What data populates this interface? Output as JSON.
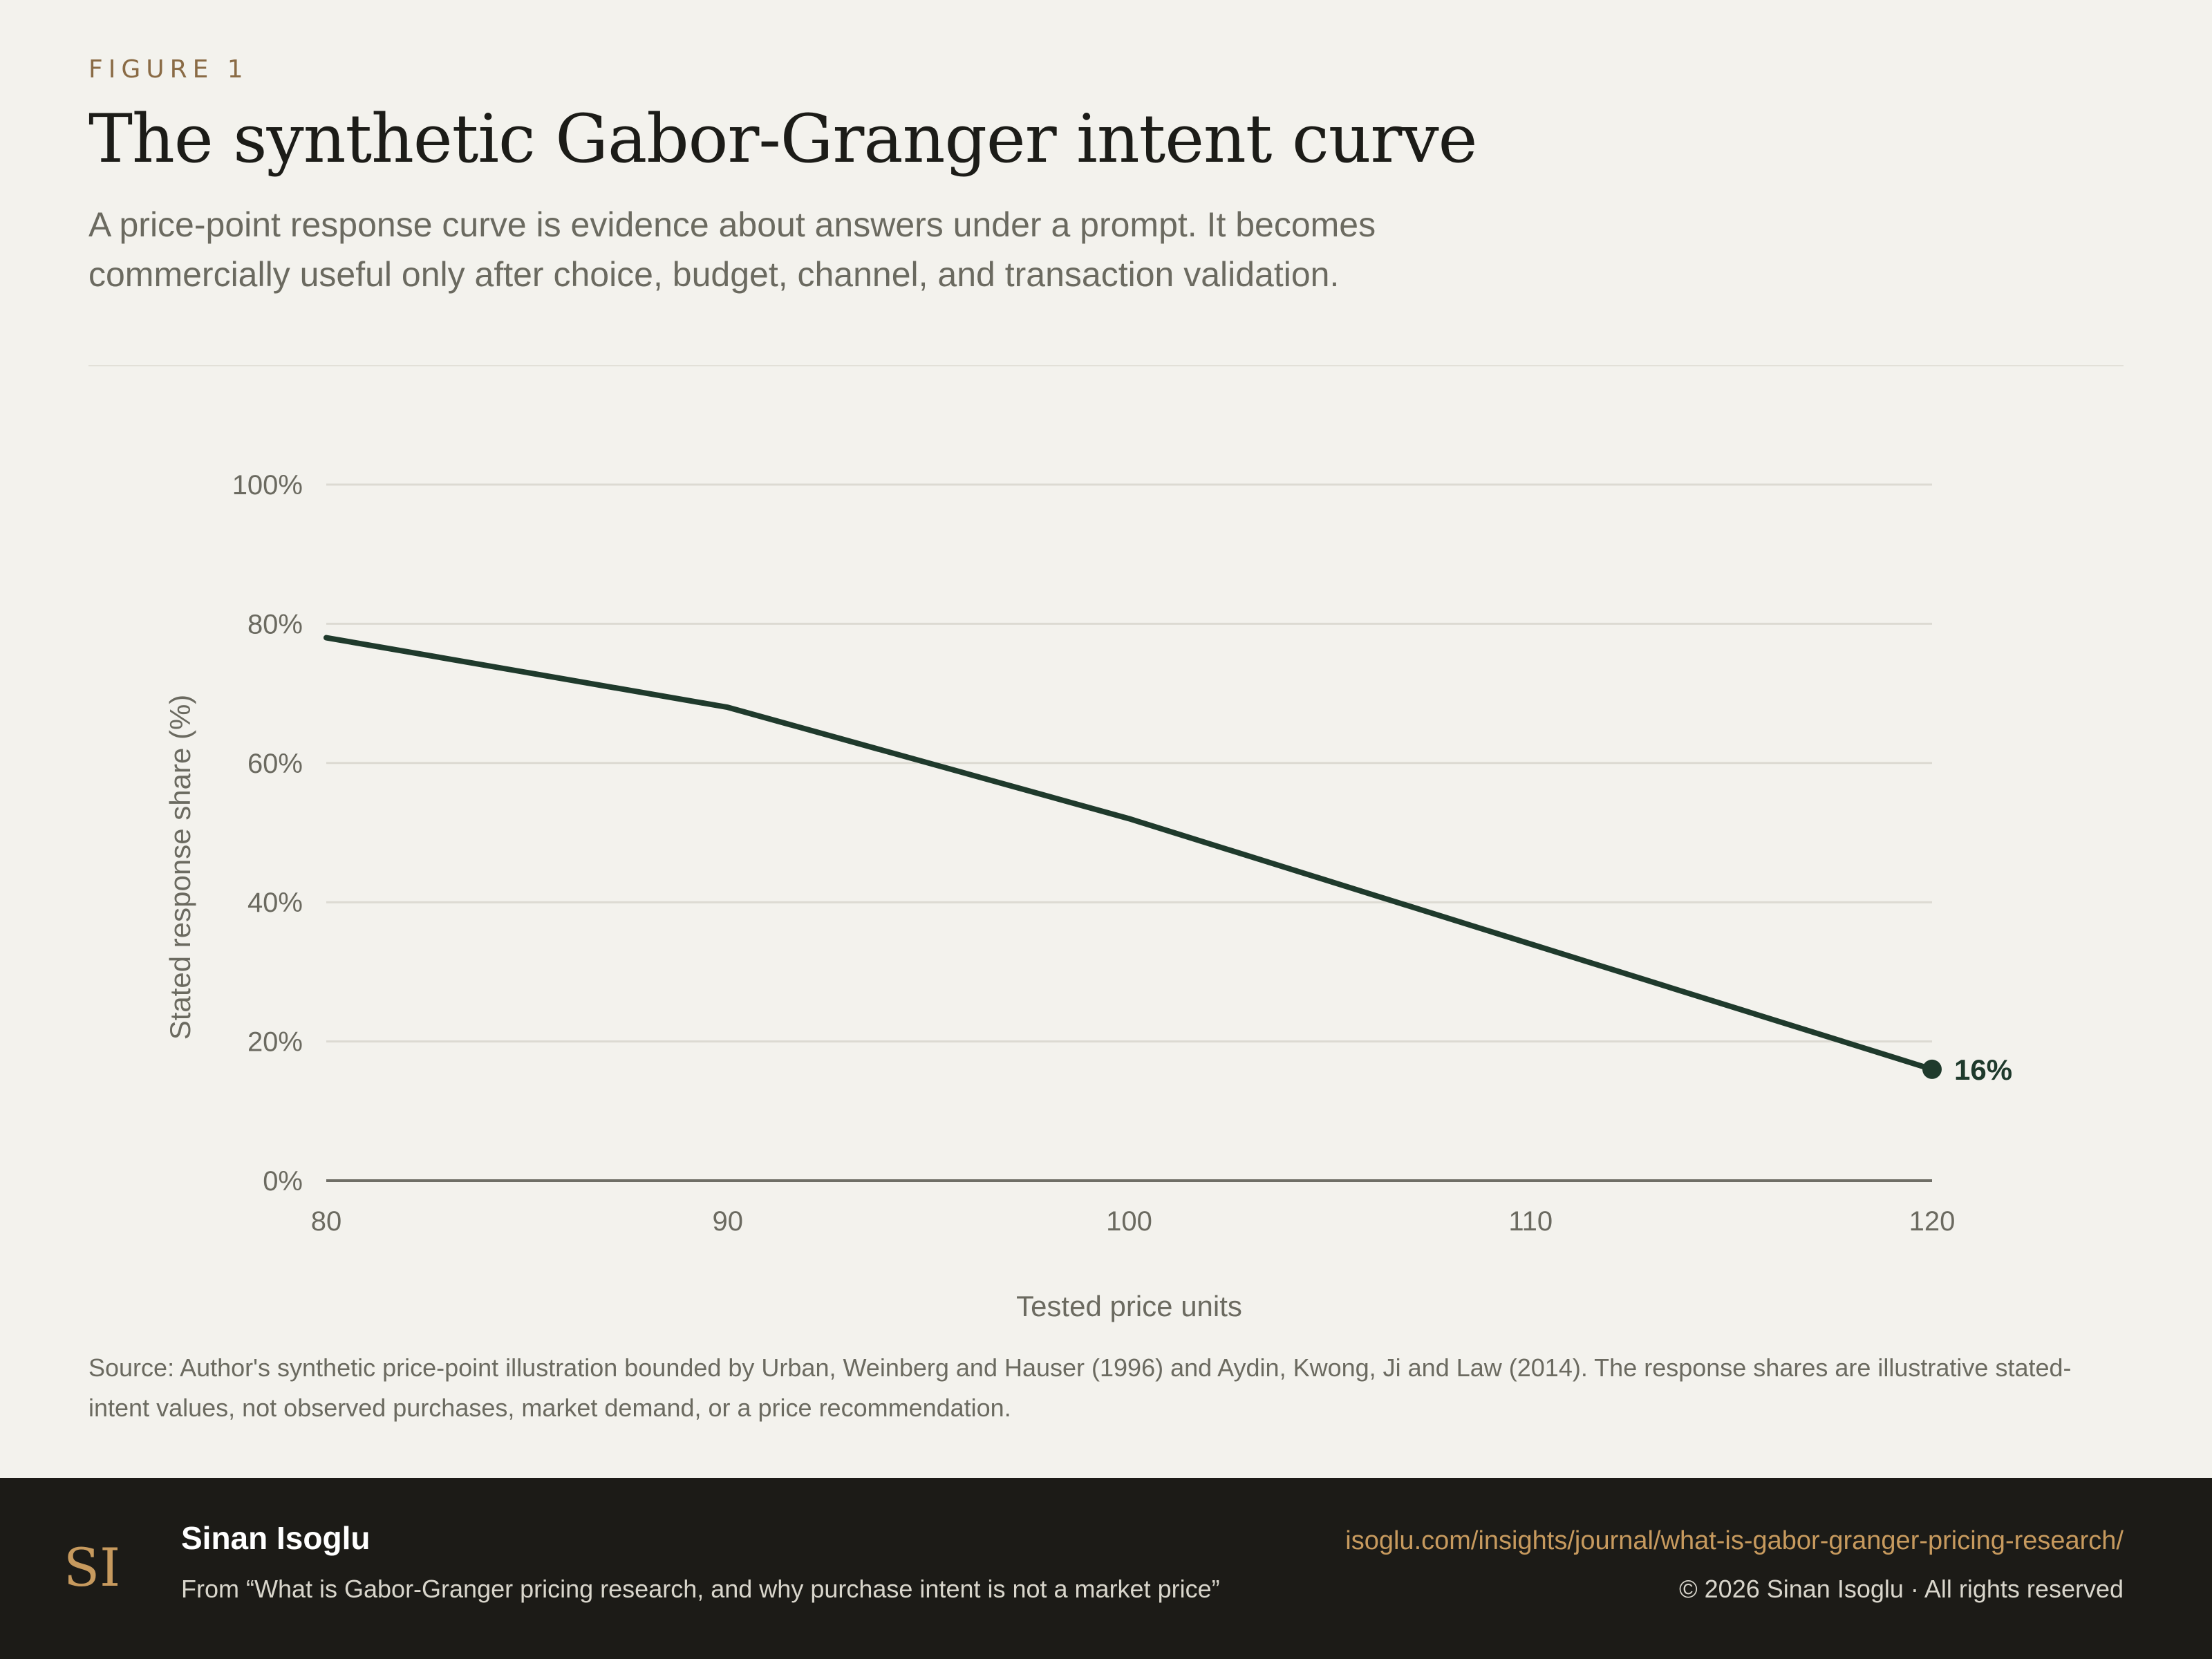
{
  "header": {
    "eyebrow": "FIGURE 1",
    "title": "The synthetic Gabor-Granger intent curve",
    "subtitle": "A price-point response curve is evidence about answers under a prompt. It becomes commercially useful only after choice, budget, channel, and transaction validation."
  },
  "chart_data": {
    "type": "line",
    "xlabel": "Tested price units",
    "ylabel": "Stated response share (%)",
    "xlim": [
      80,
      120
    ],
    "ylim": [
      0,
      100
    ],
    "xticks": [
      80,
      90,
      100,
      110,
      120
    ],
    "yticks": [
      0,
      20,
      40,
      60,
      80,
      100
    ],
    "ytick_labels": [
      "0%",
      "20%",
      "40%",
      "60%",
      "80%",
      "100%"
    ],
    "grid": true,
    "series": [
      {
        "x": [
          80,
          90,
          100,
          110,
          120
        ],
        "y": [
          78,
          68,
          52,
          34,
          16
        ],
        "color": "#1f3a2c"
      }
    ],
    "end_label": "16%"
  },
  "source": "Source: Author's synthetic price-point illustration bounded by Urban, Weinberg and Hauser (1996) and Aydin, Kwong, Ji and Law (2014). The response shares are illustrative stated-intent values, not observed purchases, market demand, or a price recommendation.",
  "footer": {
    "logo_text": "SI",
    "author": "Sinan Isoglu",
    "article": "From “What is Gabor-Granger pricing research, and why purchase intent is not a market price”",
    "url": "isoglu.com/insights/journal/what-is-gabor-granger-pricing-research/",
    "copyright": "© 2026 Sinan Isoglu · All rights reserved"
  },
  "colors": {
    "background": "#f3f2ed",
    "accent": "#8a6b45",
    "line": "#1f3a2c",
    "footer_bg": "#1c1b17",
    "link": "#c79a5e"
  }
}
